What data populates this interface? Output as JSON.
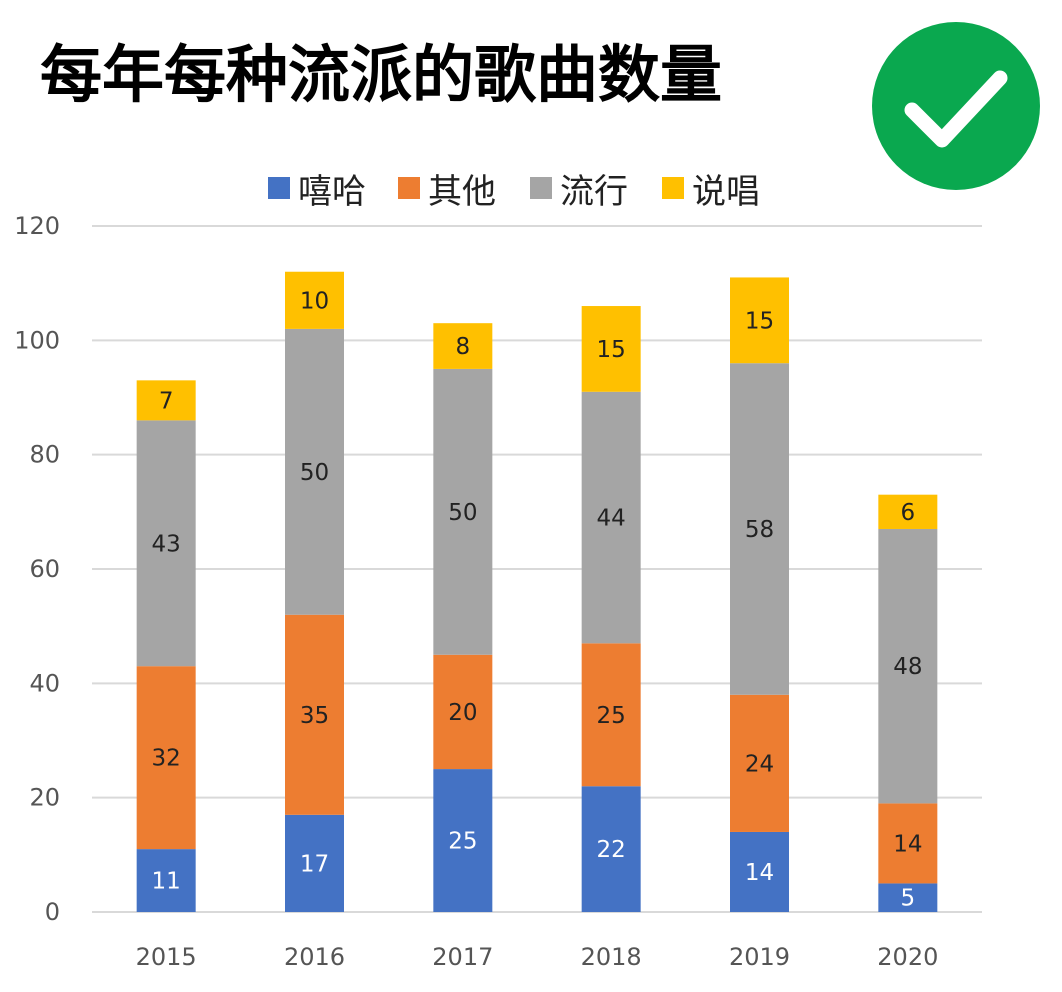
{
  "title": "每年每种流派的歌曲数量",
  "badge": {
    "icon": "checkmark-icon",
    "color": "#0aa84f"
  },
  "chart_data": {
    "type": "bar",
    "stacked": true,
    "title": "每年每种流派的歌曲数量",
    "categories": [
      "2015",
      "2016",
      "2017",
      "2018",
      "2019",
      "2020"
    ],
    "series": [
      {
        "name": "嘻哈",
        "color": "#4472c4",
        "label_color": "#ffffff",
        "values": [
          11,
          17,
          25,
          22,
          14,
          5
        ]
      },
      {
        "name": "其他",
        "color": "#ed7d31",
        "label_color": "#222222",
        "values": [
          32,
          35,
          20,
          25,
          24,
          14
        ]
      },
      {
        "name": "流行",
        "color": "#a5a5a5",
        "label_color": "#222222",
        "values": [
          43,
          50,
          50,
          44,
          58,
          48
        ]
      },
      {
        "name": "说唱",
        "color": "#ffc000",
        "label_color": "#222222",
        "values": [
          7,
          10,
          8,
          15,
          15,
          6
        ]
      }
    ],
    "ylim": [
      0,
      120
    ],
    "yticks": [
      0,
      20,
      40,
      60,
      80,
      100,
      120
    ],
    "xlabel": "",
    "ylabel": "",
    "grid": true,
    "legend_position": "top"
  }
}
